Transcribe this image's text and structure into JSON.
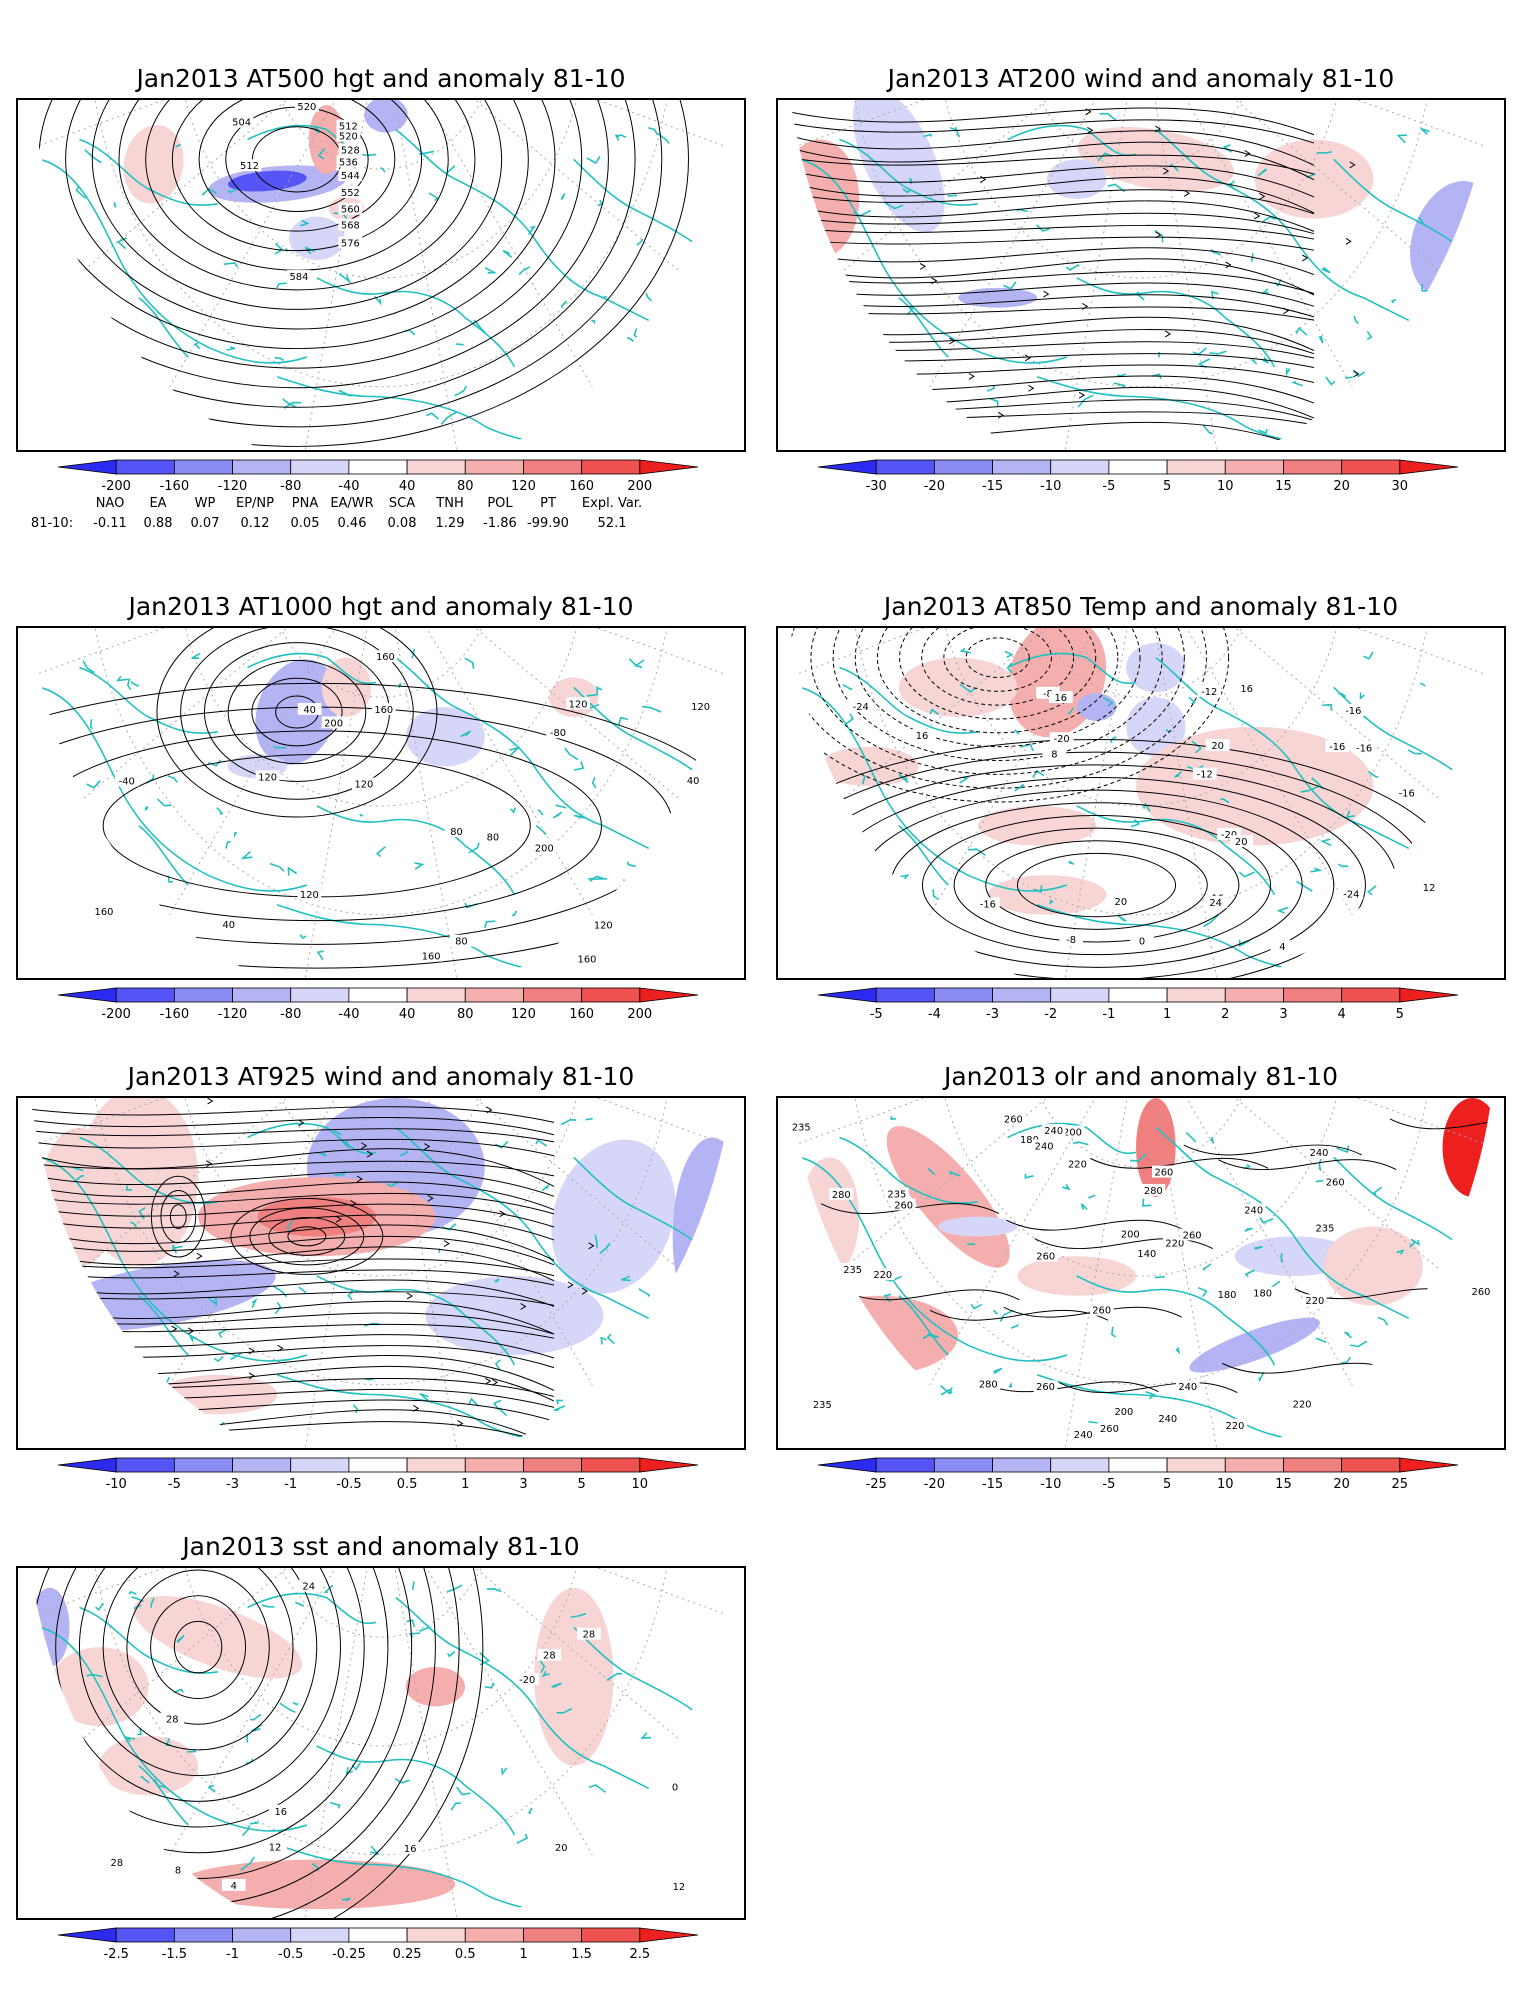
{
  "panels": [
    {
      "id": "p1",
      "title": "Jan2013 AT500 hgt and anomaly 81-10",
      "contour_labels": [
        "520",
        "504",
        "512",
        "512",
        "520",
        "528",
        "536",
        "544",
        "552",
        "560",
        "568",
        "576",
        "584"
      ],
      "colorbar_labels": [
        "-200",
        "-160",
        "-120",
        "-80",
        "-40",
        "40",
        "80",
        "120",
        "160",
        "200"
      ],
      "colorbar_colors": [
        "#2b2bf2",
        "#5555f5",
        "#8c8cf5",
        "#b4b4f5",
        "#d6d6f8",
        "#ffffff",
        "#f8d5d5",
        "#f5aeae",
        "#f07f7f",
        "#ef5050",
        "#ee1f1f"
      ]
    },
    {
      "id": "p2",
      "title": "Jan2013 AT200 wind and anomaly 81-10",
      "contour_labels": [],
      "colorbar_labels": [
        "-30",
        "-20",
        "-15",
        "-10",
        "-5",
        "5",
        "10",
        "15",
        "20",
        "30"
      ],
      "colorbar_colors": [
        "#2b2bf2",
        "#5555f5",
        "#8c8cf5",
        "#b4b4f5",
        "#d6d6f8",
        "#ffffff",
        "#f8d5d5",
        "#f5aeae",
        "#f07f7f",
        "#ef5050",
        "#ee1f1f"
      ]
    },
    {
      "id": "p3",
      "title": "Jan2013 AT1000 hgt and anomaly 81-10",
      "contour_labels": [
        "160",
        "120",
        "40",
        "40",
        "-40",
        "-80",
        "120",
        "40",
        "80",
        "120",
        "200",
        "160",
        "200",
        "120",
        "160",
        "160",
        "80",
        "120",
        "160",
        "80",
        "120"
      ],
      "colorbar_labels": [
        "-200",
        "-160",
        "-120",
        "-80",
        "-40",
        "40",
        "80",
        "120",
        "160",
        "200"
      ],
      "colorbar_colors": [
        "#2b2bf2",
        "#5555f5",
        "#8c8cf5",
        "#b4b4f5",
        "#d6d6f8",
        "#ffffff",
        "#f8d5d5",
        "#f5aeae",
        "#f07f7f",
        "#ef5050",
        "#ee1f1f"
      ]
    },
    {
      "id": "p4",
      "title": "Jan2013 AT850 Temp and anomaly 81-10",
      "contour_labels": [
        "-24",
        "-20",
        "-16",
        "-24",
        "-20",
        "-16",
        "-12",
        "-16",
        "-12",
        "-8",
        "-8",
        "0",
        "-16",
        "-16",
        "16",
        "16",
        "4",
        "8",
        "12",
        "16",
        "20",
        "24",
        "20",
        "20",
        "16"
      ],
      "colorbar_labels": [
        "-5",
        "-4",
        "-3",
        "-2",
        "-1",
        "1",
        "2",
        "3",
        "4",
        "5"
      ],
      "colorbar_colors": [
        "#2b2bf2",
        "#5555f5",
        "#8c8cf5",
        "#b4b4f5",
        "#d6d6f8",
        "#ffffff",
        "#f8d5d5",
        "#f5aeae",
        "#f07f7f",
        "#ef5050",
        "#ee1f1f"
      ]
    },
    {
      "id": "p5",
      "title": "Jan2013 AT925 wind and anomaly 81-10",
      "contour_labels": [],
      "colorbar_labels": [
        "-10",
        "-5",
        "-3",
        "-1",
        "-0.5",
        "0.5",
        "1",
        "3",
        "5",
        "10"
      ],
      "colorbar_colors": [
        "#2b2bf2",
        "#5555f5",
        "#8c8cf5",
        "#b4b4f5",
        "#d6d6f8",
        "#ffffff",
        "#f8d5d5",
        "#f5aeae",
        "#f07f7f",
        "#ef5050",
        "#ee1f1f"
      ]
    },
    {
      "id": "p6",
      "title": "Jan2013 olr and anomaly 81-10",
      "contour_labels": [
        "260",
        "260",
        "260",
        "280",
        "260",
        "240",
        "235",
        "220",
        "180",
        "140",
        "180",
        "200",
        "200",
        "180",
        "200",
        "220",
        "235",
        "240",
        "220",
        "235",
        "240",
        "260",
        "260",
        "260",
        "220",
        "240",
        "240",
        "260",
        "280",
        "260",
        "280",
        "260",
        "240",
        "220",
        "235",
        "220",
        "235",
        "240",
        "260"
      ],
      "colorbar_labels": [
        "-25",
        "-20",
        "-15",
        "-10",
        "-5",
        "5",
        "10",
        "15",
        "20",
        "25"
      ],
      "colorbar_colors": [
        "#2b2bf2",
        "#5555f5",
        "#8c8cf5",
        "#b4b4f5",
        "#d6d6f8",
        "#ffffff",
        "#f8d5d5",
        "#f5aeae",
        "#f07f7f",
        "#ef5050",
        "#ee1f1f"
      ]
    },
    {
      "id": "p7",
      "title": "Jan2013 sst and anomaly 81-10",
      "contour_labels": [
        "28",
        "28",
        "20",
        "16",
        "12",
        "8",
        "4",
        "0",
        "12",
        "16",
        "24",
        "28",
        "28",
        "-20"
      ],
      "colorbar_labels": [
        "-2.5",
        "-1.5",
        "-1",
        "-0.5",
        "-0.25",
        "0.25",
        "0.5",
        "1",
        "1.5",
        "2.5"
      ],
      "colorbar_colors": [
        "#2b2bf2",
        "#5555f5",
        "#8c8cf5",
        "#b4b4f5",
        "#d6d6f8",
        "#ffffff",
        "#f8d5d5",
        "#f5aeae",
        "#f07f7f",
        "#ef5050",
        "#ee1f1f"
      ]
    }
  ],
  "teleconnections": {
    "headers": [
      "NAO",
      "EA",
      "WP",
      "EP/NP",
      "PNA",
      "EA/WR",
      "SCA",
      "TNH",
      "POL",
      "PT",
      "Expl. Var."
    ],
    "row_label": "81-10:",
    "values": [
      "-0.11",
      "0.88",
      "0.07",
      "0.12",
      "0.05",
      "0.46",
      "0.08",
      "1.29",
      "-1.86",
      "-99.90",
      "52.1"
    ]
  },
  "colors": {
    "coastline": "#20c0c0",
    "contour": "#000000",
    "grid": "#a8a8a8"
  }
}
